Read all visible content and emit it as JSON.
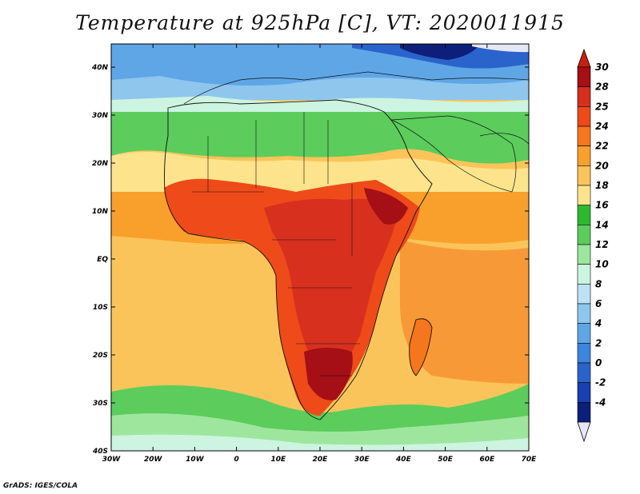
{
  "title": "Temperature at 925hPa [C], VT: 2020011915",
  "credit": "GrADS: IGES/COLA",
  "axes": {
    "lon_labels": [
      "30W",
      "20W",
      "10W",
      "0",
      "10E",
      "20E",
      "30E",
      "40E",
      "50E",
      "60E",
      "70E"
    ],
    "lat_labels": [
      "40N",
      "30N",
      "20N",
      "10N",
      "EQ",
      "10S",
      "20S",
      "30S",
      "40S"
    ]
  },
  "colorbar": {
    "levels": [
      "30",
      "28",
      "25",
      "24",
      "22",
      "20",
      "18",
      "16",
      "14",
      "12",
      "10",
      "8",
      "6",
      "4",
      "2",
      "0",
      "-2",
      "-4"
    ],
    "colors": [
      "#a50f15",
      "#d7301f",
      "#ee4a1a",
      "#f5761c",
      "#f99f2b",
      "#fbc45a",
      "#fde48c",
      "#2db82d",
      "#5ccc5c",
      "#9ee69e",
      "#ccf4e0",
      "#bee2f5",
      "#8ec6ee",
      "#5fa6e6",
      "#3d85de",
      "#2b63cc",
      "#1b3fb0",
      "#0d1f7a"
    ],
    "cap_top": "#c81e10",
    "cap_bottom": "#e6e6f8"
  }
}
